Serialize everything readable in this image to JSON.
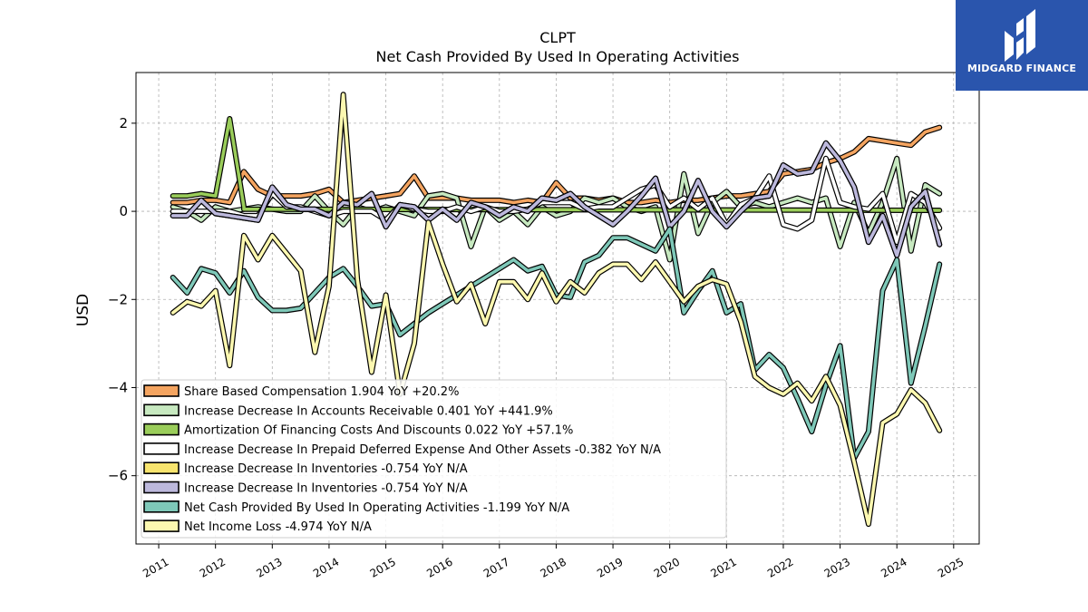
{
  "chart_data": {
    "type": "line",
    "title": "CLPT",
    "subtitle": "Net Cash Provided By Used In Operating Activities",
    "ylabel": "USD",
    "xlabel": "",
    "xlim": [
      2010.6,
      2025.45
    ],
    "ylim": [
      -7.55,
      3.15
    ],
    "x_ticks": [
      2011,
      2012,
      2013,
      2014,
      2015,
      2016,
      2017,
      2018,
      2019,
      2020,
      2021,
      2022,
      2023,
      2024,
      2025
    ],
    "y_ticks": [
      2,
      0,
      -2,
      -4,
      -6
    ],
    "y_tick_labels": [
      "2",
      "0",
      "−2",
      "−4",
      "−6"
    ],
    "grid": true,
    "legend_position": "lower-left",
    "series": [
      {
        "name": "Share Based Compensation  1.904 YoY +20.2%",
        "color": "#f4a460",
        "x": [
          2011.25,
          2011.5,
          2011.75,
          2012.0,
          2012.25,
          2012.5,
          2012.75,
          2013.0,
          2013.25,
          2013.5,
          2013.75,
          2014.0,
          2014.25,
          2014.5,
          2014.75,
          2015.0,
          2015.25,
          2015.5,
          2015.75,
          2016.0,
          2016.25,
          2016.5,
          2016.75,
          2017.0,
          2017.25,
          2017.5,
          2017.75,
          2018.0,
          2018.25,
          2018.5,
          2018.75,
          2019.0,
          2019.25,
          2019.5,
          2019.75,
          2020.0,
          2020.25,
          2020.5,
          2020.75,
          2021.0,
          2021.25,
          2021.5,
          2021.75,
          2022.0,
          2022.25,
          2022.5,
          2022.75,
          2023.0,
          2023.25,
          2023.5,
          2023.75,
          2024.0,
          2024.25,
          2024.5,
          2024.75
        ],
        "values": [
          0.2,
          0.2,
          0.25,
          0.25,
          0.2,
          0.9,
          0.5,
          0.35,
          0.35,
          0.35,
          0.4,
          0.5,
          0.2,
          0.25,
          0.3,
          0.35,
          0.4,
          0.8,
          0.3,
          0.3,
          0.3,
          0.25,
          0.25,
          0.25,
          0.2,
          0.25,
          0.2,
          0.65,
          0.3,
          0.3,
          0.25,
          0.3,
          0.2,
          0.2,
          0.25,
          0.2,
          0.25,
          0.25,
          0.3,
          0.35,
          0.35,
          0.4,
          0.45,
          0.85,
          0.9,
          0.95,
          1.1,
          1.2,
          1.35,
          1.65,
          1.6,
          1.55,
          1.5,
          1.8,
          1.904
        ]
      },
      {
        "name": "Increase Decrease In Accounts Receivable  0.401 YoY +441.9%",
        "color": "#c7e9c0",
        "x": [
          2011.25,
          2011.5,
          2011.75,
          2012.0,
          2012.25,
          2012.5,
          2012.75,
          2013.0,
          2013.25,
          2013.5,
          2013.75,
          2014.0,
          2014.25,
          2014.5,
          2014.75,
          2015.0,
          2015.25,
          2015.5,
          2015.75,
          2016.0,
          2016.25,
          2016.5,
          2016.75,
          2017.0,
          2017.25,
          2017.5,
          2017.75,
          2018.0,
          2018.25,
          2018.5,
          2018.75,
          2019.0,
          2019.25,
          2019.5,
          2019.75,
          2020.0,
          2020.25,
          2020.5,
          2020.75,
          2021.0,
          2021.25,
          2021.5,
          2021.75,
          2022.0,
          2022.25,
          2022.5,
          2022.75,
          2023.0,
          2023.25,
          2023.5,
          2023.75,
          2024.0,
          2024.25,
          2024.5,
          2024.75
        ],
        "values": [
          0.1,
          0.0,
          -0.2,
          0.1,
          0.0,
          0.05,
          0.1,
          0.05,
          0.0,
          0.0,
          0.35,
          0.0,
          -0.3,
          0.1,
          0.0,
          0.1,
          0.0,
          -0.1,
          0.35,
          0.4,
          0.3,
          -0.8,
          0.1,
          -0.2,
          0.0,
          -0.3,
          0.1,
          -0.1,
          0.0,
          0.3,
          0.2,
          0.3,
          0.1,
          0.0,
          0.1,
          -1.1,
          0.85,
          -0.5,
          0.2,
          0.45,
          0.1,
          0.2,
          0.1,
          0.2,
          0.3,
          0.2,
          0.3,
          -0.8,
          0.2,
          -0.5,
          0.2,
          1.2,
          -0.9,
          0.6,
          0.401
        ]
      },
      {
        "name": "Amortization Of Financing Costs And Discounts  0.022 YoY +57.1%",
        "color": "#9acd5a",
        "x": [
          2011.25,
          2011.5,
          2011.75,
          2012.0,
          2012.25,
          2012.5,
          2012.5,
          2024.75
        ],
        "values": [
          0.35,
          0.35,
          0.4,
          0.35,
          2.1,
          0.1,
          0.05,
          0.022
        ]
      },
      {
        "name": "Increase Decrease In Prepaid Deferred Expense And Other Assets  -0.382 YoY N/A",
        "color": "#ffffff",
        "x": [
          2011.25,
          2011.5,
          2011.75,
          2012.0,
          2012.25,
          2012.5,
          2012.75,
          2013.0,
          2013.25,
          2013.5,
          2013.75,
          2014.0,
          2014.25,
          2014.5,
          2014.75,
          2015.0,
          2015.25,
          2015.5,
          2015.75,
          2016.0,
          2016.25,
          2016.5,
          2016.75,
          2017.0,
          2017.25,
          2017.5,
          2017.75,
          2018.0,
          2018.25,
          2018.5,
          2018.75,
          2019.0,
          2019.25,
          2019.5,
          2019.75,
          2020.0,
          2020.25,
          2020.5,
          2020.75,
          2021.0,
          2021.25,
          2021.5,
          2021.75,
          2022.0,
          2022.25,
          2022.5,
          2022.75,
          2023.0,
          2023.25,
          2023.5,
          2023.75,
          2024.0,
          2024.25,
          2024.5,
          2024.75
        ],
        "values": [
          0.0,
          0.0,
          0.0,
          0.0,
          0.0,
          -0.1,
          -0.1,
          0.4,
          0.1,
          0.1,
          0.0,
          -0.1,
          0.0,
          0.0,
          0.0,
          -0.2,
          0.15,
          0.05,
          0.0,
          0.0,
          0.1,
          0.0,
          0.1,
          0.0,
          0.0,
          0.05,
          0.2,
          0.2,
          0.2,
          0.05,
          0.1,
          0.1,
          0.3,
          0.5,
          0.6,
          0.1,
          0.3,
          0.05,
          0.3,
          -0.3,
          0.15,
          0.3,
          0.8,
          -0.3,
          -0.4,
          -0.2,
          1.2,
          0.2,
          0.1,
          0.05,
          0.4,
          -0.7,
          0.4,
          0.2,
          -0.382
        ]
      },
      {
        "name": "Increase Decrease In Inventories  -0.754 YoY N/A",
        "color": "#f7e46e",
        "x": [
          2011.25,
          2011.5,
          2011.75,
          2012.0,
          2012.25,
          2012.5,
          2012.75,
          2013.0,
          2013.25,
          2013.5,
          2013.75,
          2014.0,
          2014.25,
          2014.5,
          2014.75,
          2015.0,
          2015.25,
          2015.5,
          2015.75,
          2016.0,
          2016.25,
          2016.5,
          2016.75,
          2017.0,
          2017.25,
          2017.5,
          2017.75,
          2018.0,
          2018.25,
          2018.5,
          2018.75,
          2019.0,
          2019.25,
          2019.5,
          2019.75,
          2020.0,
          2020.25,
          2020.5,
          2020.75,
          2021.0,
          2021.25,
          2021.5,
          2021.75,
          2022.0,
          2022.25,
          2022.5,
          2022.75,
          2023.0,
          2023.25,
          2023.5,
          2023.75,
          2024.0,
          2024.25,
          2024.5,
          2024.75
        ],
        "values": [
          -0.1,
          -0.1,
          0.25,
          -0.05,
          -0.1,
          -0.15,
          -0.2,
          0.55,
          0.15,
          0.05,
          0.05,
          -0.1,
          0.2,
          0.15,
          0.4,
          -0.35,
          0.15,
          0.1,
          -0.2,
          0.05,
          -0.2,
          0.2,
          0.1,
          -0.1,
          0.1,
          0.0,
          0.3,
          0.25,
          0.4,
          0.1,
          -0.1,
          -0.3,
          0.0,
          0.35,
          0.75,
          -0.35,
          0.0,
          0.7,
          0.0,
          -0.35,
          0.0,
          0.3,
          0.35,
          1.05,
          0.85,
          0.9,
          1.55,
          1.15,
          0.55,
          -0.7,
          -0.1,
          -1.0,
          0.1,
          0.45,
          -0.754
        ]
      },
      {
        "name": "Increase Decrease In Inventories  -0.754 YoY N/A",
        "color": "#bcb8dc",
        "x": [
          2011.25,
          2011.5,
          2011.75,
          2012.0,
          2012.25,
          2012.5,
          2012.75,
          2013.0,
          2013.25,
          2013.5,
          2013.75,
          2014.0,
          2014.25,
          2014.5,
          2014.75,
          2015.0,
          2015.25,
          2015.5,
          2015.75,
          2016.0,
          2016.25,
          2016.5,
          2016.75,
          2017.0,
          2017.25,
          2017.5,
          2017.75,
          2018.0,
          2018.25,
          2018.5,
          2018.75,
          2019.0,
          2019.25,
          2019.5,
          2019.75,
          2020.0,
          2020.25,
          2020.5,
          2020.75,
          2021.0,
          2021.25,
          2021.5,
          2021.75,
          2022.0,
          2022.25,
          2022.5,
          2022.75,
          2023.0,
          2023.25,
          2023.5,
          2023.75,
          2024.0,
          2024.25,
          2024.5,
          2024.75
        ],
        "values": [
          -0.1,
          -0.1,
          0.25,
          -0.05,
          -0.1,
          -0.15,
          -0.2,
          0.55,
          0.15,
          0.05,
          0.05,
          -0.1,
          0.2,
          0.15,
          0.4,
          -0.35,
          0.15,
          0.1,
          -0.2,
          0.05,
          -0.2,
          0.2,
          0.1,
          -0.1,
          0.1,
          0.0,
          0.3,
          0.25,
          0.4,
          0.1,
          -0.1,
          -0.3,
          0.0,
          0.35,
          0.75,
          -0.35,
          0.0,
          0.7,
          0.0,
          -0.35,
          0.0,
          0.3,
          0.35,
          1.05,
          0.85,
          0.9,
          1.55,
          1.15,
          0.55,
          -0.7,
          -0.1,
          -1.0,
          0.1,
          0.45,
          -0.754
        ]
      },
      {
        "name": "Net Cash Provided By Used In Operating Activities  -1.199 YoY N/A",
        "color": "#7ec8b8",
        "x": [
          2011.25,
          2011.5,
          2011.75,
          2012.0,
          2012.25,
          2012.5,
          2012.75,
          2013.0,
          2013.25,
          2013.5,
          2013.75,
          2014.0,
          2014.25,
          2014.5,
          2014.75,
          2015.0,
          2015.25,
          2015.5,
          2015.75,
          2016.0,
          2016.25,
          2016.5,
          2016.75,
          2017.0,
          2017.25,
          2017.5,
          2017.75,
          2018.0,
          2018.25,
          2018.5,
          2018.75,
          2019.0,
          2019.25,
          2019.5,
          2019.75,
          2020.0,
          2020.25,
          2020.5,
          2020.75,
          2021.0,
          2021.25,
          2021.5,
          2021.75,
          2022.0,
          2022.25,
          2022.5,
          2022.75,
          2023.0,
          2023.25,
          2023.5,
          2023.75,
          2024.0,
          2024.25,
          2024.5,
          2024.75
        ],
        "values": [
          -1.5,
          -1.85,
          -1.3,
          -1.4,
          -1.85,
          -1.35,
          -1.95,
          -2.25,
          -2.25,
          -2.2,
          -1.85,
          -1.5,
          -1.3,
          -1.7,
          -2.15,
          -2.1,
          -2.8,
          -2.55,
          -2.3,
          -2.1,
          -1.9,
          -1.7,
          -1.5,
          -1.3,
          -1.1,
          -1.35,
          -1.25,
          -1.9,
          -1.95,
          -1.15,
          -1.0,
          -0.6,
          -0.6,
          -0.75,
          -0.9,
          -0.4,
          -2.3,
          -1.8,
          -1.35,
          -2.3,
          -2.1,
          -3.6,
          -3.25,
          -3.55,
          -4.25,
          -5.0,
          -3.95,
          -3.05,
          -5.6,
          -5.0,
          -1.8,
          -1.1,
          -3.9,
          -2.6,
          -1.199
        ]
      },
      {
        "name": "Net Income Loss  -4.974 YoY N/A",
        "color": "#fcf8b0",
        "x": [
          2011.25,
          2011.5,
          2011.75,
          2012.0,
          2012.25,
          2012.5,
          2012.75,
          2013.0,
          2013.25,
          2013.5,
          2013.75,
          2014.0,
          2014.25,
          2014.5,
          2014.75,
          2015.0,
          2015.25,
          2015.5,
          2015.75,
          2016.0,
          2016.25,
          2016.5,
          2016.75,
          2017.0,
          2017.25,
          2017.5,
          2017.75,
          2018.0,
          2018.25,
          2018.5,
          2018.75,
          2019.0,
          2019.25,
          2019.5,
          2019.75,
          2020.0,
          2020.25,
          2020.5,
          2020.75,
          2021.0,
          2021.25,
          2021.5,
          2021.75,
          2022.0,
          2022.25,
          2022.5,
          2022.75,
          2023.0,
          2023.25,
          2023.5,
          2023.75,
          2024.0,
          2024.25,
          2024.5,
          2024.75
        ],
        "values": [
          -2.3,
          -2.05,
          -2.15,
          -1.8,
          -3.5,
          -0.55,
          -1.1,
          -0.55,
          -0.95,
          -1.35,
          -3.2,
          -1.7,
          2.65,
          -1.55,
          -3.65,
          -1.9,
          -4.15,
          -3.0,
          -0.25,
          -1.2,
          -2.05,
          -1.65,
          -2.55,
          -1.6,
          -1.6,
          -2.0,
          -1.4,
          -2.05,
          -1.6,
          -1.85,
          -1.4,
          -1.2,
          -1.2,
          -1.55,
          -1.15,
          -1.6,
          -2.05,
          -1.7,
          -1.55,
          -1.65,
          -2.5,
          -3.75,
          -4.0,
          -4.15,
          -3.9,
          -4.3,
          -3.75,
          -4.4,
          -5.7,
          -7.1,
          -4.8,
          -4.6,
          -4.05,
          -4.35,
          -4.974
        ]
      }
    ]
  },
  "branding": {
    "logo_text": "MIDGARD FINANCE",
    "logo_color": "#2a55ad"
  }
}
